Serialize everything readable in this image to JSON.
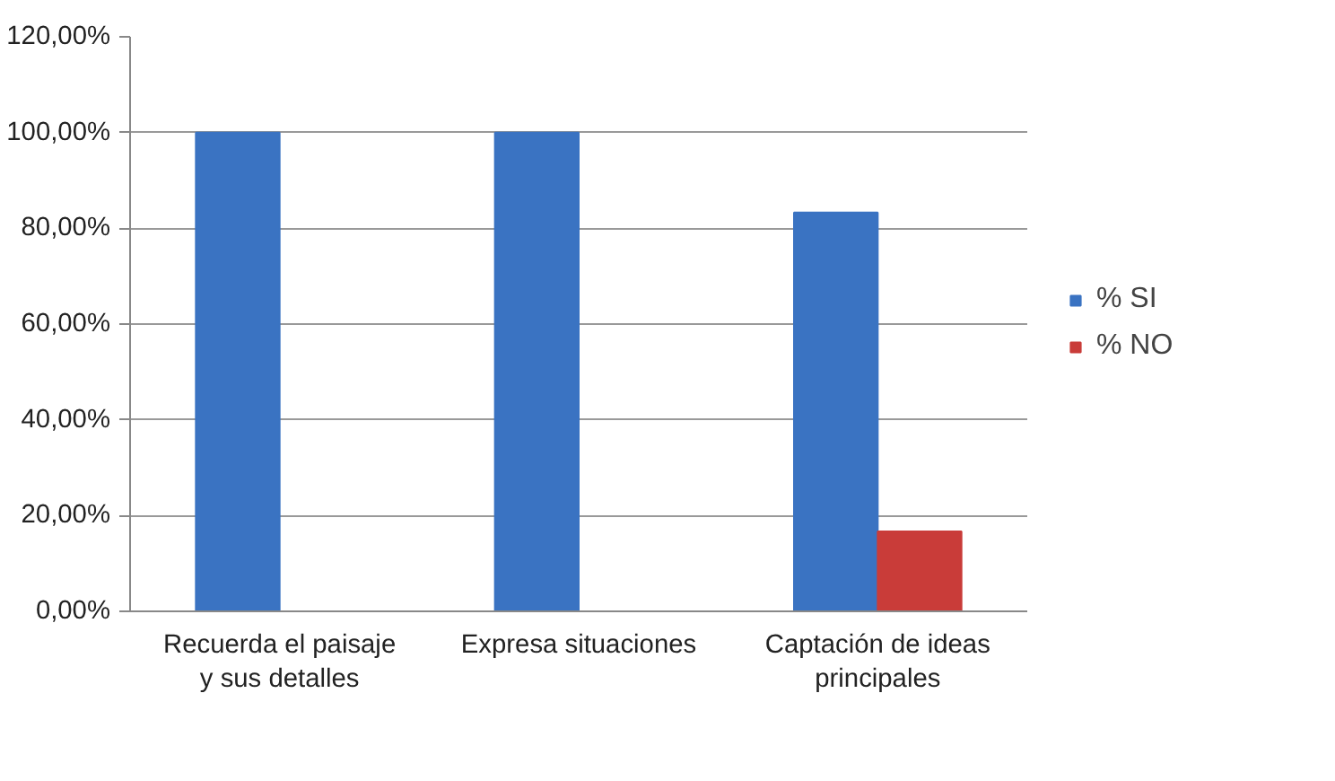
{
  "chart_data": {
    "type": "bar",
    "categories": [
      "Recuerda el paisaje\ny sus detalles",
      "Expresa situaciones",
      "Captación de ideas\nprincipales"
    ],
    "series": [
      {
        "name": "% SI",
        "color": "#3a73c2",
        "values": [
          100,
          100,
          83.3
        ]
      },
      {
        "name": "% NO",
        "color": "#c93c39",
        "values": [
          0,
          0,
          16.7
        ]
      }
    ],
    "ylim": [
      0,
      120
    ],
    "yticks": [
      {
        "value": 0,
        "label": "0,00%"
      },
      {
        "value": 20,
        "label": "20,00%"
      },
      {
        "value": 40,
        "label": "40,00%"
      },
      {
        "value": 60,
        "label": "60,00%"
      },
      {
        "value": 80,
        "label": "80,00%"
      },
      {
        "value": 100,
        "label": "100,00%"
      },
      {
        "value": 120,
        "label": "120,00%"
      }
    ],
    "grid": "y",
    "legend": "right"
  }
}
